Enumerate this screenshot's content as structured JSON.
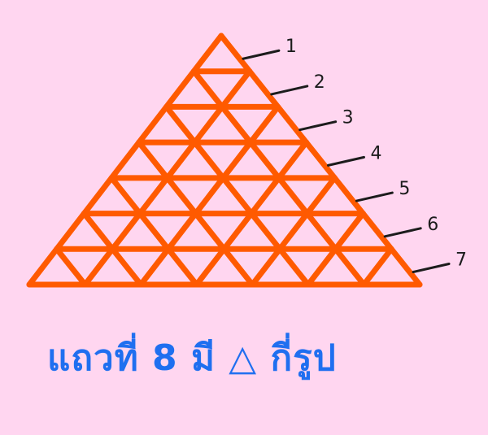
{
  "triangle": {
    "rows": 7,
    "line_color": "#ff5a00"
  },
  "row_labels": [
    "1",
    "2",
    "3",
    "4",
    "5",
    "6",
    "7"
  ],
  "caption": {
    "text": "แถวที่ 8 มี △ กี่รูป",
    "color": "#1f6ff0"
  },
  "background": "#ffd6f0"
}
